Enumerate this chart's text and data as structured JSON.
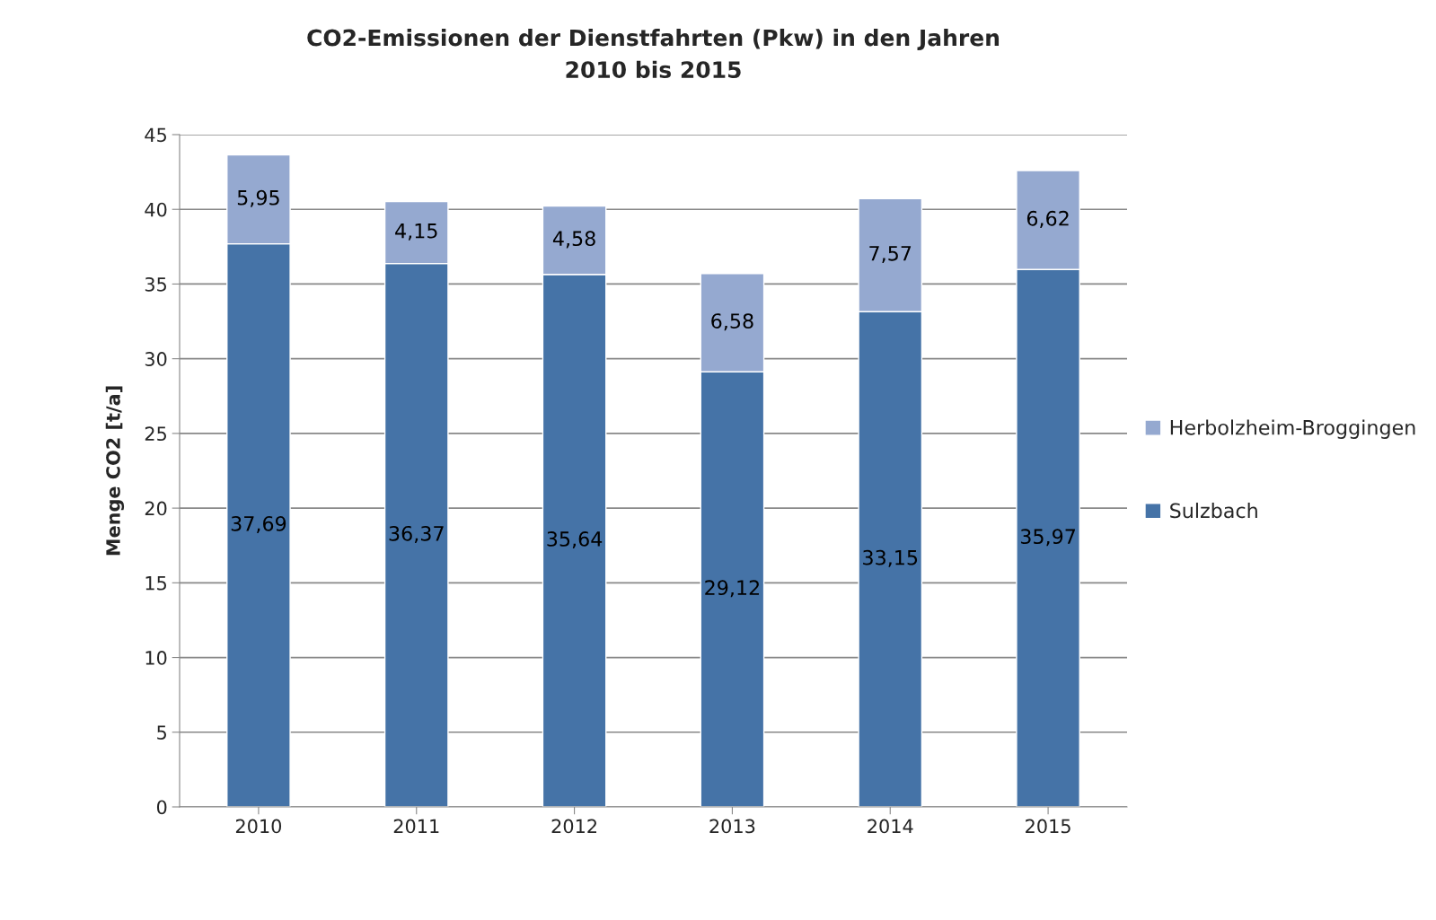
{
  "chart_data": {
    "type": "bar",
    "stacked": true,
    "title": "CO2-Emissionen der Dienstfahrten (Pkw) in den Jahren\n2010 bis 2015",
    "ylabel": "Menge CO2 [t/a]",
    "categories": [
      "2010",
      "2011",
      "2012",
      "2013",
      "2014",
      "2015"
    ],
    "series": [
      {
        "name": "Sulzbach",
        "color": "#4573a7",
        "values": [
          37.69,
          36.37,
          35.64,
          29.12,
          33.15,
          35.97
        ],
        "value_labels": [
          "37,69",
          "36,37",
          "35,64",
          "29,12",
          "33,15",
          "35,97"
        ]
      },
      {
        "name": "Herbolzheim-Broggingen",
        "color": "#95a9d0",
        "values": [
          5.95,
          4.15,
          4.58,
          6.58,
          7.57,
          6.62
        ],
        "value_labels": [
          "5,95",
          "4,15",
          "4,58",
          "6,58",
          "7,57",
          "6,62"
        ]
      }
    ],
    "ylim": [
      0,
      45
    ],
    "yticks": [
      0,
      5,
      10,
      15,
      20,
      25,
      30,
      35,
      40,
      45
    ],
    "grid": "y",
    "legend": "right"
  }
}
